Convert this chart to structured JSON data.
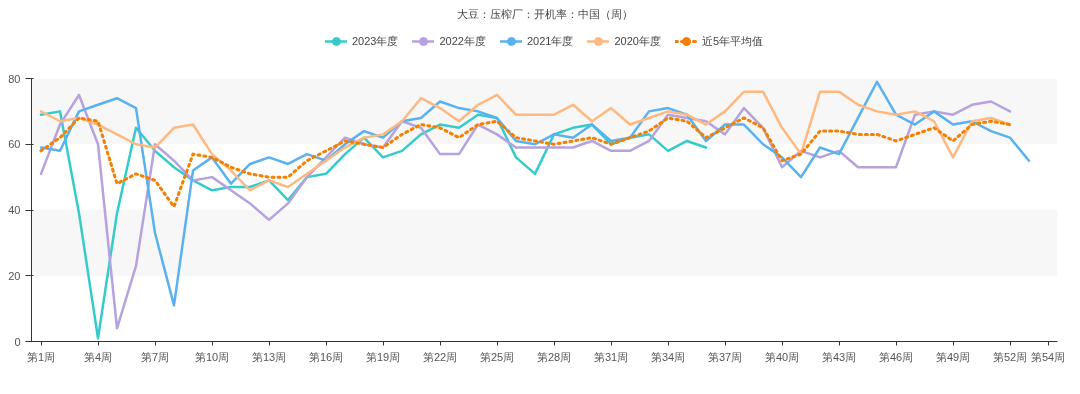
{
  "chart_data": {
    "type": "line",
    "title": "大豆：压榨厂：开机率：中国（周）",
    "categories": [
      "第1周",
      null,
      null,
      "第4周",
      null,
      null,
      "第7周",
      null,
      null,
      "第10周",
      null,
      null,
      "第13周",
      null,
      null,
      "第16周",
      null,
      null,
      "第19周",
      null,
      null,
      "第22周",
      null,
      null,
      "第25周",
      null,
      null,
      "第28周",
      null,
      null,
      "第31周",
      null,
      null,
      "第34周",
      null,
      null,
      "第37周",
      null,
      null,
      "第40周",
      null,
      null,
      "第43周",
      null,
      null,
      "第46周",
      null,
      null,
      "第49周",
      null,
      null,
      "第52周",
      null,
      "第54周"
    ],
    "series": [
      {
        "name": "2023年度",
        "color": "#36cbcb",
        "values": [
          69,
          70,
          39,
          1,
          39,
          65,
          58,
          53,
          49,
          46,
          47,
          47,
          49,
          43,
          50,
          51,
          57,
          62,
          56,
          58,
          63,
          66,
          65,
          69,
          68,
          56,
          51,
          63,
          65,
          66,
          60,
          62,
          63,
          58,
          61,
          59,
          null,
          null,
          null,
          null,
          null,
          null,
          null,
          null,
          null,
          null,
          null,
          null,
          null,
          null,
          null,
          null,
          null,
          null
        ]
      },
      {
        "name": "2022年度",
        "color": "#b6a2de",
        "values": [
          51,
          66,
          75,
          60,
          4,
          23,
          60,
          55,
          49,
          50,
          46,
          42,
          37,
          42,
          50,
          56,
          62,
          60,
          59,
          67,
          65,
          57,
          57,
          66,
          63,
          59,
          59,
          59,
          59,
          61,
          58,
          58,
          61,
          69,
          68,
          67,
          63,
          71,
          65,
          53,
          58,
          56,
          58,
          53,
          53,
          53,
          69,
          70,
          69,
          72,
          73,
          70,
          null,
          null
        ]
      },
      {
        "name": "2021年度",
        "color": "#5ab1ef",
        "values": [
          59,
          58,
          70,
          72,
          74,
          71,
          33,
          11,
          52,
          56,
          48,
          54,
          56,
          54,
          57,
          55,
          60,
          64,
          62,
          67,
          68,
          73,
          71,
          70,
          68,
          61,
          60,
          63,
          62,
          66,
          61,
          62,
          70,
          71,
          69,
          61,
          66,
          66,
          60,
          56,
          50,
          59,
          57,
          68,
          79,
          69,
          66,
          70,
          66,
          67,
          64,
          62,
          55,
          null
        ]
      },
      {
        "name": "2020年度",
        "color": "#ffb980",
        "values": [
          70,
          67,
          68,
          66,
          63,
          60,
          59,
          65,
          66,
          57,
          52,
          46,
          49,
          47,
          51,
          55,
          59,
          62,
          63,
          67,
          74,
          71,
          67,
          72,
          75,
          69,
          69,
          69,
          72,
          67,
          71,
          66,
          68,
          70,
          69,
          66,
          70,
          76,
          76,
          65,
          57,
          76,
          76,
          72,
          70,
          69,
          70,
          67,
          56,
          67,
          68,
          66,
          null,
          null
        ]
      },
      {
        "name": "近5年平均值",
        "color": "#f77f00",
        "line_style": "dotted",
        "values": [
          58,
          62,
          68,
          67,
          48,
          51,
          49,
          41,
          57,
          56,
          53,
          51,
          50,
          50,
          55,
          58,
          61,
          60,
          59,
          63,
          66,
          65,
          62,
          66,
          67,
          62,
          61,
          60,
          61,
          62,
          60,
          62,
          64,
          68,
          67,
          62,
          65,
          68,
          65,
          55,
          57,
          64,
          64,
          63,
          63,
          61,
          63,
          65,
          61,
          66,
          67,
          66,
          null,
          null
        ]
      }
    ],
    "ylim": [
      0,
      80
    ],
    "yticks": [
      0,
      20,
      40,
      60,
      80
    ],
    "bands": [
      {
        "axis": "y",
        "from": 20,
        "to": 40,
        "color": "#f7f7f7"
      },
      {
        "axis": "y",
        "from": 60,
        "to": 80,
        "color": "#f7f7f7"
      }
    ],
    "grid": false,
    "legend": "top",
    "marker": "none",
    "line_style": "solid"
  }
}
